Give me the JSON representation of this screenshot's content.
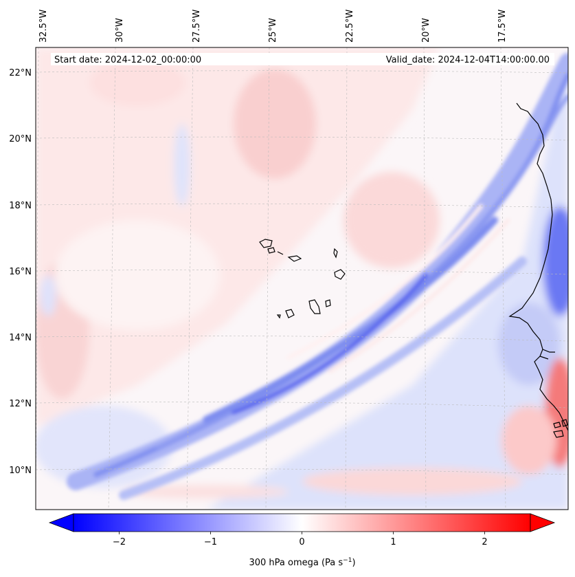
{
  "map": {
    "start_date_label": "Start date: 2024-12-02_00:00:00",
    "valid_date_label": "Valid_date: 2024-12-04T14:00:00.00",
    "lon_ticks": [
      "32.5°W",
      "30°W",
      "27.5°W",
      "25°W",
      "22.5°W",
      "20°W",
      "17.5°W"
    ],
    "lat_ticks": [
      "22°N",
      "20°N",
      "18°N",
      "16°N",
      "14°N",
      "12°N",
      "10°N"
    ],
    "lon_range": [
      -33.0,
      -16.0
    ],
    "lat_range": [
      8.9,
      22.8
    ]
  },
  "colorbar": {
    "label": "300 hPa omega (Pa s",
    "label_sup": "−1",
    "label_end": ")",
    "tick_labels": [
      "−2",
      "−1",
      "0",
      "1",
      "2"
    ],
    "tick_values": [
      -2,
      -1,
      0,
      1,
      2
    ],
    "vmin": -2.5,
    "vmax": 2.5,
    "min_color": "#0000ff",
    "mid_color": "#ffffff",
    "max_color": "#ff0000"
  }
}
